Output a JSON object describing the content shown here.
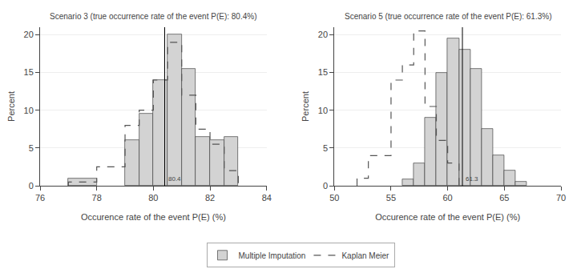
{
  "chart_data": [
    {
      "type": "histogram",
      "title": "Scenario 3 (true occurrence rate of the event P(E): 80.4%)",
      "xlabel": "Occurence rate of the event P(E) (%)",
      "ylabel": "Percent",
      "xlim": [
        76,
        84
      ],
      "xticks": [
        76,
        78,
        80,
        82,
        84
      ],
      "ylim": [
        0,
        21
      ],
      "yticks": [
        0,
        5,
        10,
        15,
        20
      ],
      "grid": true,
      "legend": "bottom",
      "vline": 80.4,
      "annotations": [
        {
          "x": 80.4,
          "text": "80.4"
        }
      ],
      "series": [
        {
          "name": "Multiple Imputation",
          "type": "bar",
          "color": "#d3d3d3",
          "x": [
            77.0,
            79.0,
            79.5,
            80.0,
            80.5,
            81.0,
            81.5,
            82.0,
            82.5
          ],
          "widths": [
            1.0,
            0.5,
            0.5,
            0.5,
            0.5,
            0.5,
            0.5,
            0.5,
            0.5
          ],
          "values": [
            1.0,
            6.0,
            9.5,
            14.0,
            20.0,
            15.5,
            6.5,
            6.0,
            6.5
          ]
        },
        {
          "name": "Kaplan Meier",
          "type": "line",
          "line_style": "dashed",
          "color": "#555555",
          "bins": [
            77.0,
            77.5,
            78.0,
            78.5,
            79.0,
            79.5,
            80.0,
            80.5,
            81.0,
            81.5,
            82.0,
            82.5,
            83.0
          ],
          "values": [
            0.5,
            0.5,
            2.5,
            2.5,
            8.0,
            10.0,
            14.0,
            19.0,
            12.0,
            7.5,
            5.5,
            2.0
          ]
        }
      ]
    },
    {
      "type": "histogram",
      "title": "Scenario 5 (true occurrence rate of the event P(E): 61.3%)",
      "xlabel": "Occurence rate of the event P(E) (%)",
      "ylabel": "Percent",
      "xlim": [
        50,
        70
      ],
      "xticks": [
        50,
        55,
        60,
        65,
        70
      ],
      "ylim": [
        0,
        21
      ],
      "yticks": [
        0,
        5,
        10,
        15,
        20
      ],
      "grid": true,
      "vline": 61.3,
      "annotations": [
        {
          "x": 61.3,
          "text": "61.3"
        }
      ],
      "series": [
        {
          "name": "Multiple Imputation",
          "type": "bar",
          "color": "#d3d3d3",
          "x": [
            56.0,
            57.0,
            58.0,
            59.0,
            60.0,
            61.0,
            62.0,
            63.0,
            64.0,
            65.0,
            66.0
          ],
          "widths": [
            1.0,
            1.0,
            1.0,
            1.0,
            1.0,
            1.0,
            1.0,
            1.0,
            1.0,
            1.0,
            1.0
          ],
          "values": [
            0.8,
            3.0,
            9.0,
            15.0,
            19.5,
            18.0,
            15.5,
            7.5,
            4.0,
            2.0,
            0.5
          ]
        },
        {
          "name": "Kaplan Meier",
          "type": "line",
          "line_style": "dashed",
          "color": "#555555",
          "bins": [
            52.0,
            53.0,
            54.0,
            55.0,
            56.0,
            57.0,
            58.0,
            59.0,
            60.0,
            61.0
          ],
          "values": [
            1.0,
            4.0,
            4.0,
            14.0,
            16.0,
            20.5,
            10.5,
            6.0,
            3.0
          ]
        }
      ]
    }
  ]
}
